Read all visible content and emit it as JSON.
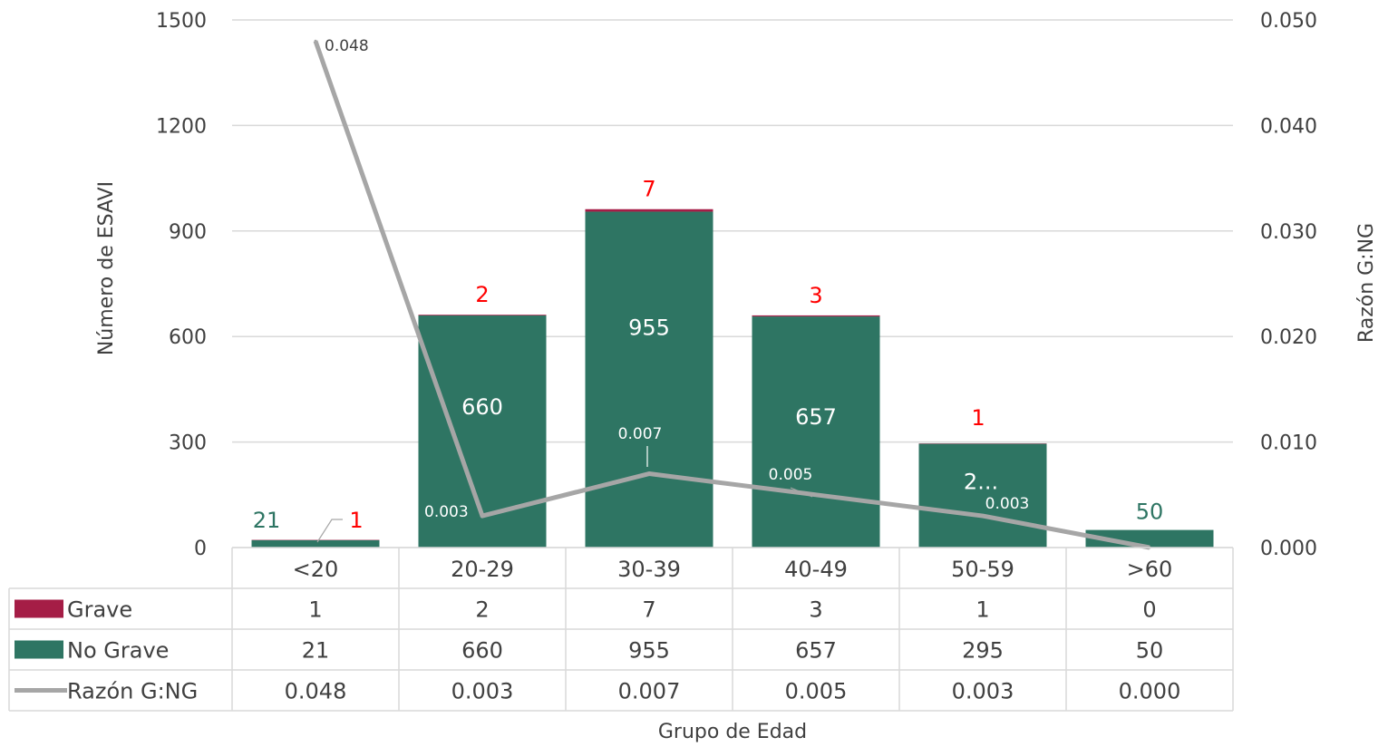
{
  "chart_data": {
    "type": "bar",
    "stacked": true,
    "categories": [
      "<20",
      "20-29",
      "30-39",
      "40-49",
      "50-59",
      ">60"
    ],
    "series": [
      {
        "name": "Grave",
        "type": "bar",
        "axis": "left",
        "color": "#a51d46",
        "values": [
          1,
          2,
          7,
          3,
          1,
          0
        ]
      },
      {
        "name": "No Grave",
        "type": "bar",
        "axis": "left",
        "color": "#2e7563",
        "values": [
          21,
          660,
          955,
          657,
          295,
          50
        ]
      },
      {
        "name": "Razón G:NG",
        "type": "line",
        "axis": "right",
        "color": "#a6a6a6",
        "values": [
          0.048,
          0.003,
          0.007,
          0.005,
          0.003,
          0.0
        ]
      }
    ],
    "table_values": {
      "grave": [
        "1",
        "2",
        "7",
        "3",
        "1",
        "0"
      ],
      "no_grave": [
        "21",
        "660",
        "955",
        "657",
        "295",
        "50"
      ],
      "razon": [
        "0.048",
        "0.003",
        "0.007",
        "0.005",
        "0.003",
        "0.000"
      ]
    },
    "bar_labels": {
      "grave": [
        "1",
        "2",
        "7",
        "3",
        "1",
        ""
      ],
      "no_grave": [
        "21",
        "660",
        "955",
        "657",
        "2...",
        "50"
      ],
      "razon": [
        "0.048",
        "0.003",
        "0.007",
        "0.005",
        "0.003",
        ""
      ]
    },
    "label_colors": {
      "grave": "#ff0000",
      "no_grave_inside": "#ffffff",
      "no_grave_outside": "#2e7563",
      "razon_dark": "#404040",
      "razon_light": "#ffffff"
    },
    "left_axis": {
      "min": 0,
      "max": 1500,
      "ticks": [
        "0",
        "300",
        "600",
        "900",
        "1200",
        "1500"
      ]
    },
    "right_axis": {
      "min": 0,
      "max": 0.05,
      "ticks": [
        "0.000",
        "0.010",
        "0.020",
        "0.030",
        "0.040",
        "0.050"
      ]
    },
    "xlabel": "Grupo de Edad",
    "ylabel": "Número de ESAVI",
    "y2label": "Razón G:NG",
    "grid": true,
    "legend": "data-table"
  }
}
